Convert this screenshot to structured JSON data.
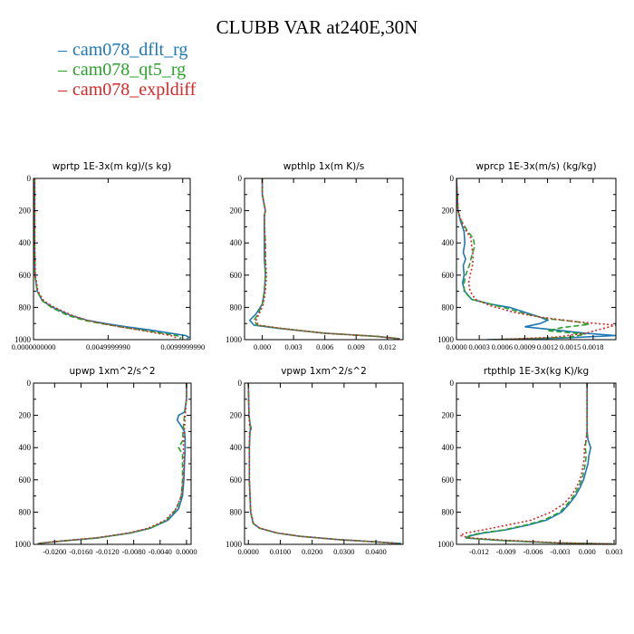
{
  "title": "CLUBB VAR at240E,30N",
  "colors": {
    "blue": "#1f77b4",
    "green": "#2ca02c",
    "red": "#d62728"
  },
  "legend": [
    {
      "label": "cam078_dflt_rg",
      "color": "#1f77b4"
    },
    {
      "label": "cam078_qt5_rg",
      "color": "#2ca02c"
    },
    {
      "label": "cam078_expldiff",
      "color": "#d62728"
    }
  ],
  "chart_data": [
    {
      "type": "line",
      "title": "wprtp  1E-3x(m kg)/(s kg)",
      "xlim": [
        0.0,
        0.0105
      ],
      "ylim": [
        1000,
        0
      ],
      "yticks": [
        "0",
        "200",
        "400",
        "600",
        "800",
        "1000"
      ],
      "xticks": [
        "0.0000000000",
        "0.0049999990",
        "0.0099999990"
      ],
      "series": [
        {
          "color": "#1f77b4",
          "y": [
            0,
            200,
            400,
            600,
            700,
            760,
            800,
            850,
            880,
            900,
            920,
            940,
            960,
            975,
            985,
            995
          ],
          "x": [
            8e-05,
            8e-05,
            8e-05,
            0.0001,
            0.00025,
            0.0006,
            0.0013,
            0.0025,
            0.0036,
            0.0048,
            0.0062,
            0.0078,
            0.0092,
            0.0102,
            0.0104,
            0.0103
          ]
        },
        {
          "color": "#2ca02c",
          "y": [
            0,
            200,
            400,
            600,
            700,
            760,
            800,
            850,
            880,
            900,
            920,
            940,
            960,
            975,
            985,
            995
          ],
          "x": [
            8e-05,
            8e-05,
            8e-05,
            0.0001,
            0.00025,
            0.0006,
            0.0012,
            0.0023,
            0.0034,
            0.0045,
            0.0058,
            0.0072,
            0.0086,
            0.0096,
            0.0099,
            0.0098
          ]
        },
        {
          "color": "#d62728",
          "y": [
            0,
            200,
            400,
            600,
            700,
            760,
            800,
            850,
            880,
            900,
            920,
            940,
            960,
            975,
            985,
            995
          ],
          "x": [
            8e-05,
            8e-05,
            8e-05,
            0.00012,
            0.0003,
            0.0007,
            0.0014,
            0.0026,
            0.0036,
            0.0046,
            0.0058,
            0.0071,
            0.0083,
            0.0092,
            0.0095,
            0.0094
          ]
        }
      ]
    },
    {
      "type": "line",
      "title": "wpthlp  1x(m K)/s",
      "xlim": [
        -0.0017,
        0.0135
      ],
      "ylim": [
        1000,
        0
      ],
      "yticks": [
        "0",
        "200",
        "400",
        "600",
        "800",
        "1000"
      ],
      "xticks": [
        "0.000",
        "0.003",
        "0.006",
        "0.009",
        "0.012"
      ],
      "series": [
        {
          "color": "#1f77b4",
          "y": [
            0,
            100,
            200,
            230,
            300,
            400,
            500,
            600,
            700,
            780,
            840,
            880,
            910,
            930,
            960,
            980,
            995
          ],
          "x": [
            0.0,
            0.0,
            0.0003,
            0.0002,
            0.0002,
            0.0002,
            0.0002,
            0.0003,
            0.0002,
            0.0,
            -0.0006,
            -0.0012,
            -0.0008,
            0.0015,
            0.006,
            0.011,
            0.0132
          ]
        },
        {
          "color": "#2ca02c",
          "y": [
            0,
            100,
            200,
            230,
            300,
            400,
            500,
            600,
            700,
            780,
            840,
            880,
            910,
            930,
            960,
            980,
            995
          ],
          "x": [
            0.0,
            0.0,
            0.0003,
            0.0002,
            0.0002,
            0.0003,
            0.0003,
            0.0003,
            0.0002,
            0.0,
            -0.0004,
            -0.0008,
            -0.0005,
            0.0017,
            0.006,
            0.011,
            0.0132
          ]
        },
        {
          "color": "#d62728",
          "y": [
            0,
            100,
            200,
            230,
            300,
            400,
            500,
            600,
            700,
            780,
            840,
            880,
            910,
            930,
            960,
            980,
            995
          ],
          "x": [
            0.0,
            0.0,
            0.0003,
            0.0002,
            0.0002,
            0.0003,
            0.0003,
            0.0004,
            0.0003,
            0.0001,
            -0.0003,
            -0.0006,
            -0.0004,
            0.0018,
            0.006,
            0.011,
            0.0132
          ]
        }
      ]
    },
    {
      "type": "line",
      "title": "wprcp  1E-3x(m/s) (kg/kg)",
      "xlim": [
        0.0,
        0.0021
      ],
      "ylim": [
        1000,
        0
      ],
      "yticks": [
        "0",
        "200",
        "400",
        "600",
        "800",
        "1000"
      ],
      "xticks": [
        "0.0000",
        "0.0003",
        "0.0006",
        "0.0009",
        "0.0012",
        "0.0015",
        "0.0018"
      ],
      "series": [
        {
          "color": "#1f77b4",
          "y": [
            0,
            200,
            260,
            330,
            400,
            460,
            500,
            540,
            600,
            650,
            700,
            750,
            780,
            800,
            830,
            860,
            880,
            900,
            920,
            940,
            960,
            975,
            990,
            1000
          ],
          "x": [
            0,
            2e-05,
            5e-05,
            0.0001,
            0.00011,
            9e-05,
            0.00012,
            9e-05,
            0.0001,
            8e-05,
            0.00011,
            0.0002,
            0.00045,
            0.0007,
            0.0009,
            0.0011,
            0.0012,
            0.0011,
            0.0009,
            0.0013,
            0.0017,
            0.0021,
            0.0014,
            0.0004
          ]
        },
        {
          "color": "#2ca02c",
          "y": [
            0,
            200,
            260,
            330,
            370,
            420,
            480,
            540,
            600,
            650,
            700,
            750,
            780,
            810,
            840,
            870,
            890,
            905,
            925,
            945,
            965,
            985,
            1000
          ],
          "x": [
            0,
            2e-05,
            6e-05,
            0.00015,
            0.00022,
            0.00024,
            0.0002,
            0.00017,
            0.00012,
            0.0001,
            0.0001,
            0.0002,
            0.00045,
            0.0007,
            0.0009,
            0.0012,
            0.0016,
            0.00175,
            0.0014,
            0.0012,
            0.0017,
            0.0015,
            0.0005
          ]
        },
        {
          "color": "#d62728",
          "y": [
            0,
            200,
            260,
            330,
            370,
            420,
            480,
            540,
            600,
            650,
            700,
            750,
            790,
            830,
            860,
            890,
            910,
            935,
            960,
            985,
            1000
          ],
          "x": [
            0,
            2e-05,
            6e-05,
            0.00013,
            0.00019,
            0.0002,
            0.00022,
            0.00021,
            0.00018,
            0.00016,
            0.00018,
            0.00025,
            0.00045,
            0.00075,
            0.0011,
            0.0016,
            0.0021,
            0.0019,
            0.0017,
            0.0013,
            0.0005
          ]
        }
      ]
    },
    {
      "type": "line",
      "title": "upwp  1xm^2/s^2",
      "xlim": [
        -0.0232,
        0.0007
      ],
      "ylim": [
        1000,
        0
      ],
      "yticks": [
        "0",
        "200",
        "400",
        "600",
        "800",
        "1000"
      ],
      "xticks": [
        "-0.0200",
        "-0.0160",
        "-0.0120",
        "-0.0080",
        "-0.0040",
        "0.0000"
      ],
      "series": [
        {
          "color": "#1f77b4",
          "y": [
            0,
            100,
            180,
            200,
            230,
            260,
            300,
            340,
            400,
            500,
            600,
            700,
            780,
            850,
            900,
            930,
            960,
            980,
            995
          ],
          "x": [
            0,
            0,
            -0.0003,
            -0.0012,
            -0.0014,
            -0.0009,
            -0.0003,
            -0.0002,
            -0.0002,
            -0.0003,
            -0.0004,
            -0.0006,
            -0.0012,
            -0.0028,
            -0.0055,
            -0.0085,
            -0.0135,
            -0.019,
            -0.0225
          ]
        },
        {
          "color": "#2ca02c",
          "y": [
            0,
            100,
            200,
            280,
            360,
            400,
            440,
            500,
            600,
            700,
            780,
            850,
            900,
            930,
            960,
            980,
            995
          ],
          "x": [
            0,
            0,
            -0.0003,
            -0.0005,
            -0.0006,
            -0.0012,
            -0.0006,
            -0.0006,
            -0.0006,
            -0.0008,
            -0.0015,
            -0.003,
            -0.0055,
            -0.0085,
            -0.0135,
            -0.019,
            -0.0225
          ]
        },
        {
          "color": "#d62728",
          "y": [
            0,
            100,
            200,
            280,
            360,
            400,
            440,
            500,
            600,
            700,
            780,
            850,
            900,
            930,
            960,
            980,
            995
          ],
          "x": [
            0,
            0,
            -0.0002,
            -0.0003,
            -0.0004,
            -0.0005,
            -0.0004,
            -0.0004,
            -0.0005,
            -0.0008,
            -0.0016,
            -0.0032,
            -0.0058,
            -0.0088,
            -0.0138,
            -0.0192,
            -0.0226
          ]
        }
      ]
    },
    {
      "type": "line",
      "title": "vpwp  1xm^2/s^2",
      "xlim": [
        -0.0012,
        0.0485
      ],
      "ylim": [
        1000,
        0
      ],
      "yticks": [
        "0",
        "200",
        "400",
        "600",
        "800",
        "1000"
      ],
      "xticks": [
        "0.0000",
        "0.0100",
        "0.0200",
        "0.0300",
        "0.0400"
      ],
      "series": [
        {
          "color": "#1f77b4",
          "y": [
            0,
            200,
            260,
            280,
            300,
            400,
            600,
            800,
            870,
            900,
            930,
            950,
            970,
            985,
            995
          ],
          "x": [
            0,
            0.0002,
            0.0006,
            0.0009,
            0.0005,
            0.0003,
            0.0003,
            0.0007,
            0.0015,
            0.0035,
            0.009,
            0.016,
            0.028,
            0.04,
            0.048
          ]
        },
        {
          "color": "#2ca02c",
          "y": [
            0,
            200,
            260,
            280,
            300,
            400,
            600,
            800,
            870,
            900,
            930,
            950,
            970,
            985,
            995
          ],
          "x": [
            0,
            0.0002,
            0.0005,
            0.0007,
            0.0005,
            0.0003,
            0.0003,
            0.0007,
            0.0015,
            0.0035,
            0.009,
            0.016,
            0.028,
            0.04,
            0.047
          ]
        },
        {
          "color": "#d62728",
          "y": [
            0,
            200,
            260,
            280,
            300,
            400,
            600,
            800,
            870,
            900,
            930,
            950,
            970,
            985,
            995
          ],
          "x": [
            0,
            0.0002,
            0.0004,
            0.0006,
            0.0004,
            0.0003,
            0.0003,
            0.0008,
            0.0016,
            0.0036,
            0.0092,
            0.0162,
            0.028,
            0.04,
            0.047
          ]
        }
      ]
    },
    {
      "type": "line",
      "title": "rtpthlp  1E-3x(kg K)/kg",
      "xlim": [
        -0.0145,
        0.0032
      ],
      "ylim": [
        1000,
        0
      ],
      "yticks": [
        "0",
        "200",
        "400",
        "600",
        "800",
        "1000"
      ],
      "xticks": [
        "-0.012",
        "-0.009",
        "-0.006",
        "-0.003",
        "0.000",
        "0.003"
      ],
      "series": [
        {
          "color": "#1f77b4",
          "y": [
            0,
            100,
            200,
            300,
            350,
            400,
            450,
            500,
            560,
            600,
            650,
            700,
            750,
            800,
            850,
            880,
            910,
            930,
            945,
            960,
            975,
            990,
            998
          ],
          "x": [
            0,
            0,
            0,
            0,
            0.0001,
            0.0004,
            0.0002,
            0.0001,
            -0.0002,
            -0.0004,
            -0.0008,
            -0.0013,
            -0.002,
            -0.0028,
            -0.0045,
            -0.0065,
            -0.009,
            -0.0115,
            -0.0128,
            -0.0135,
            -0.01,
            -0.004,
            0.0028
          ]
        },
        {
          "color": "#2ca02c",
          "y": [
            0,
            100,
            200,
            300,
            350,
            400,
            450,
            500,
            560,
            600,
            650,
            700,
            750,
            800,
            850,
            880,
            910,
            930,
            945,
            960,
            975,
            990,
            998
          ],
          "x": [
            0,
            0,
            0,
            0,
            -0.0001,
            -0.0002,
            -0.0001,
            -0.0002,
            -0.0004,
            -0.0006,
            -0.001,
            -0.0015,
            -0.0022,
            -0.003,
            -0.0048,
            -0.0068,
            -0.0092,
            -0.0118,
            -0.013,
            -0.0135,
            -0.0098,
            -0.004,
            0.0028
          ]
        },
        {
          "color": "#d62728",
          "y": [
            0,
            100,
            200,
            300,
            350,
            400,
            450,
            500,
            560,
            600,
            650,
            700,
            750,
            800,
            850,
            880,
            910,
            930,
            945,
            960,
            975,
            990,
            998
          ],
          "x": [
            0,
            0,
            0,
            0,
            -0.0001,
            -0.0003,
            -0.0003,
            -0.0004,
            -0.0006,
            -0.0008,
            -0.0012,
            -0.0018,
            -0.0026,
            -0.004,
            -0.0062,
            -0.0088,
            -0.0115,
            -0.0135,
            -0.0141,
            -0.013,
            -0.009,
            -0.0035,
            0.003
          ]
        }
      ]
    }
  ]
}
